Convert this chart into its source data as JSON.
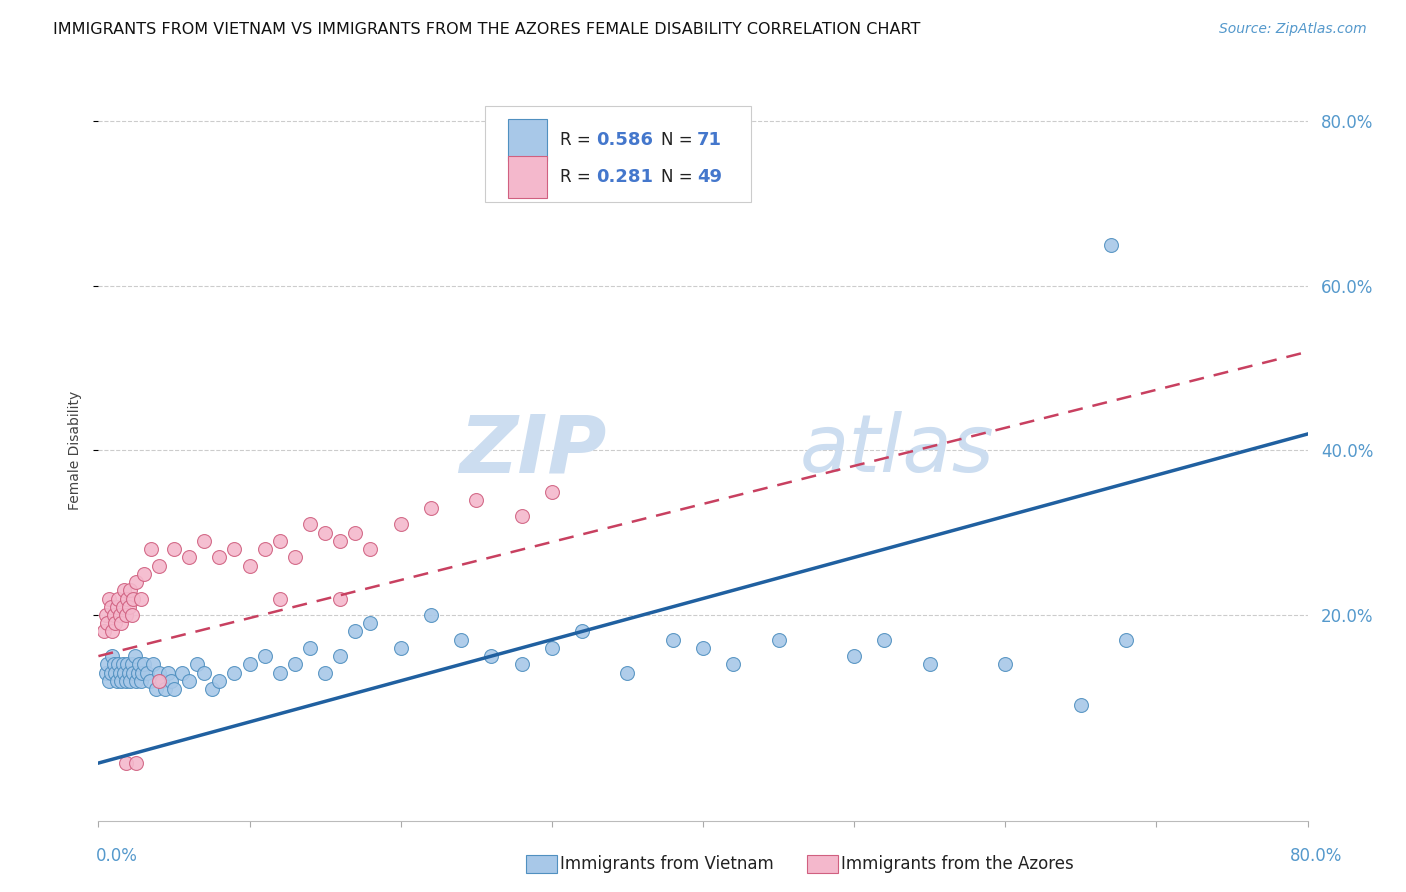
{
  "title": "IMMIGRANTS FROM VIETNAM VS IMMIGRANTS FROM THE AZORES FEMALE DISABILITY CORRELATION CHART",
  "source": "Source: ZipAtlas.com",
  "ylabel": "Female Disability",
  "ytick_values": [
    0.8,
    0.6,
    0.4,
    0.2
  ],
  "xlim": [
    0.0,
    0.8
  ],
  "ylim": [
    -0.05,
    0.85
  ],
  "color_vietnam": "#a8c8e8",
  "color_azores": "#f4b8cc",
  "color_vietnam_line": "#2060a0",
  "color_azores_line": "#c84060",
  "color_vietnam_edge": "#5090c0",
  "color_azores_edge": "#d06080",
  "watermark_zip": "ZIP",
  "watermark_atlas": "atlas",
  "viet_x": [
    0.005,
    0.006,
    0.007,
    0.008,
    0.009,
    0.01,
    0.011,
    0.012,
    0.013,
    0.014,
    0.015,
    0.016,
    0.017,
    0.018,
    0.019,
    0.02,
    0.021,
    0.022,
    0.023,
    0.024,
    0.025,
    0.026,
    0.027,
    0.028,
    0.029,
    0.03,
    0.032,
    0.034,
    0.036,
    0.038,
    0.04,
    0.042,
    0.044,
    0.046,
    0.048,
    0.05,
    0.055,
    0.06,
    0.065,
    0.07,
    0.075,
    0.08,
    0.09,
    0.1,
    0.11,
    0.12,
    0.13,
    0.14,
    0.15,
    0.16,
    0.17,
    0.18,
    0.2,
    0.22,
    0.24,
    0.26,
    0.28,
    0.3,
    0.32,
    0.35,
    0.38,
    0.4,
    0.42,
    0.45,
    0.5,
    0.52,
    0.55,
    0.6,
    0.65,
    0.68,
    0.67
  ],
  "viet_y": [
    0.13,
    0.14,
    0.12,
    0.13,
    0.15,
    0.14,
    0.13,
    0.12,
    0.14,
    0.13,
    0.12,
    0.14,
    0.13,
    0.12,
    0.14,
    0.13,
    0.12,
    0.14,
    0.13,
    0.15,
    0.12,
    0.13,
    0.14,
    0.12,
    0.13,
    0.14,
    0.13,
    0.12,
    0.14,
    0.11,
    0.13,
    0.12,
    0.11,
    0.13,
    0.12,
    0.11,
    0.13,
    0.12,
    0.14,
    0.13,
    0.11,
    0.12,
    0.13,
    0.14,
    0.15,
    0.13,
    0.14,
    0.16,
    0.13,
    0.15,
    0.18,
    0.19,
    0.16,
    0.2,
    0.17,
    0.15,
    0.14,
    0.16,
    0.18,
    0.13,
    0.17,
    0.16,
    0.14,
    0.17,
    0.15,
    0.17,
    0.14,
    0.14,
    0.09,
    0.17,
    0.65
  ],
  "az_x": [
    0.004,
    0.005,
    0.006,
    0.007,
    0.008,
    0.009,
    0.01,
    0.011,
    0.012,
    0.013,
    0.014,
    0.015,
    0.016,
    0.017,
    0.018,
    0.019,
    0.02,
    0.021,
    0.022,
    0.023,
    0.025,
    0.028,
    0.03,
    0.035,
    0.04,
    0.05,
    0.06,
    0.07,
    0.08,
    0.09,
    0.1,
    0.11,
    0.12,
    0.13,
    0.14,
    0.15,
    0.16,
    0.17,
    0.18,
    0.2,
    0.22,
    0.25,
    0.28,
    0.3,
    0.018,
    0.025,
    0.04,
    0.12,
    0.16
  ],
  "az_y": [
    0.18,
    0.2,
    0.19,
    0.22,
    0.21,
    0.18,
    0.2,
    0.19,
    0.21,
    0.22,
    0.2,
    0.19,
    0.21,
    0.23,
    0.2,
    0.22,
    0.21,
    0.23,
    0.2,
    0.22,
    0.24,
    0.22,
    0.25,
    0.28,
    0.26,
    0.28,
    0.27,
    0.29,
    0.27,
    0.28,
    0.26,
    0.28,
    0.29,
    0.27,
    0.31,
    0.3,
    0.29,
    0.3,
    0.28,
    0.31,
    0.33,
    0.34,
    0.32,
    0.35,
    0.02,
    0.02,
    0.12,
    0.22,
    0.22
  ],
  "viet_line_x": [
    0.0,
    0.8
  ],
  "viet_line_y": [
    0.02,
    0.42
  ],
  "az_line_x": [
    0.0,
    0.8
  ],
  "az_line_y": [
    0.15,
    0.52
  ]
}
